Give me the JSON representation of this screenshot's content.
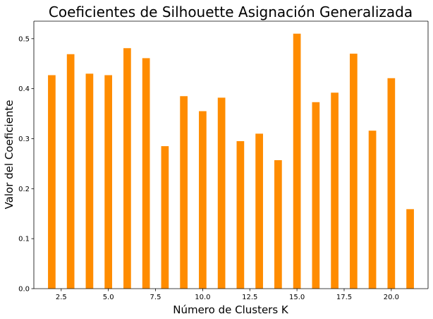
{
  "chart_data": {
    "type": "bar",
    "title": "Coeficientes de Silhouette Asignación Generalizada",
    "xlabel": "Número de Clusters K",
    "ylabel": "Valor del Coeficiente",
    "x": [
      2,
      3,
      4,
      5,
      6,
      7,
      8,
      9,
      10,
      11,
      12,
      13,
      14,
      15,
      16,
      17,
      18,
      19,
      20,
      21
    ],
    "values": [
      0.427,
      0.469,
      0.43,
      0.427,
      0.481,
      0.461,
      0.285,
      0.385,
      0.355,
      0.382,
      0.295,
      0.31,
      0.257,
      0.51,
      0.373,
      0.392,
      0.47,
      0.316,
      0.421,
      0.159
    ],
    "xlim": [
      1.05,
      21.95
    ],
    "ylim": [
      0,
      0.535
    ],
    "xticks": [
      2.5,
      5.0,
      7.5,
      10.0,
      12.5,
      15.0,
      17.5,
      20.0
    ],
    "xtick_labels": [
      "2.5",
      "5.0",
      "7.5",
      "10.0",
      "12.5",
      "15.0",
      "17.5",
      "20.0"
    ],
    "yticks": [
      0.0,
      0.1,
      0.2,
      0.3,
      0.4,
      0.5
    ],
    "ytick_labels": [
      "0.0",
      "0.1",
      "0.2",
      "0.3",
      "0.4",
      "0.5"
    ],
    "bar_width": 0.4,
    "bar_color": "#ff8c00",
    "grid": false
  }
}
